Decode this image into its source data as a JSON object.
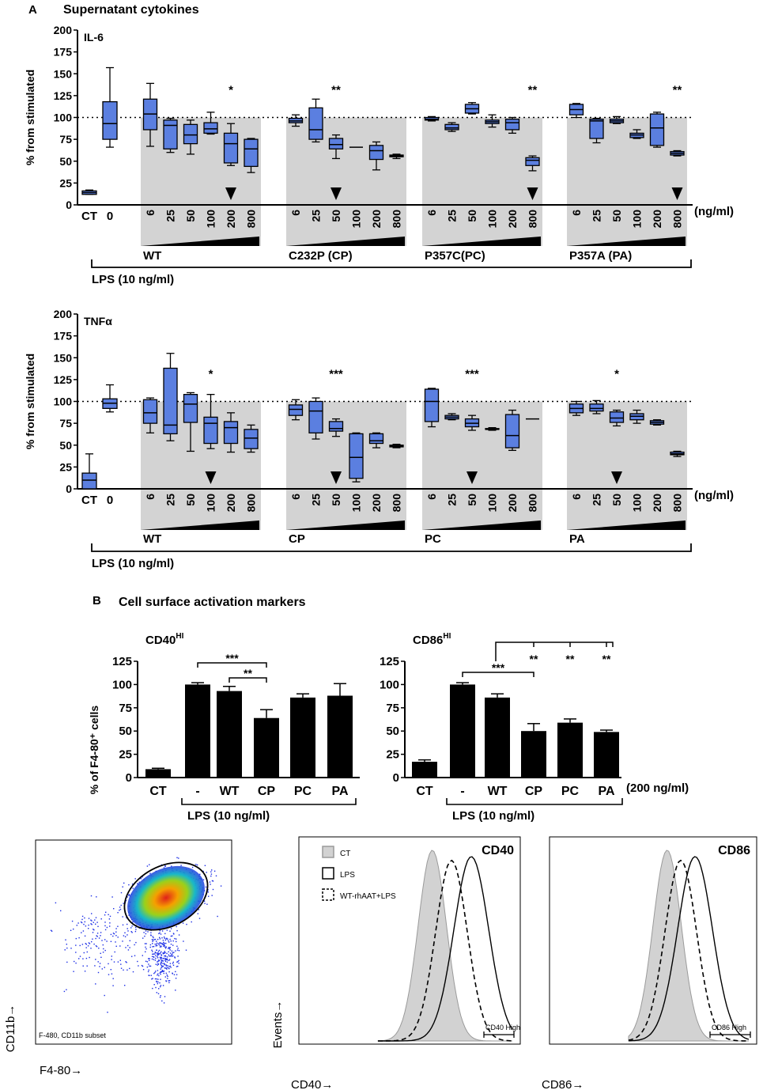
{
  "panel_a": {
    "letter": "A",
    "title": "Supernatant cytokines",
    "unit": "(ng/ml)",
    "lps_label": "LPS (10 ng/ml)",
    "ylabel": "% from stimulated",
    "ct_label": "CT",
    "zero_label": "0",
    "dose_labels": [
      "6",
      "25",
      "50",
      "100",
      "200",
      "800"
    ]
  },
  "panel_b": {
    "letter": "B",
    "title": "Cell surface activation markers",
    "ylabel": "% of F4-80⁺ cells",
    "unit": "(200 ng/ml)",
    "lps_label": "LPS  (10 ng/ml)"
  },
  "flow": {
    "scatter": {
      "xlabel": "F4-80→",
      "ylabel": "CD11b→",
      "subset": "F-480, CD11b subset"
    },
    "hist1": {
      "title": "CD40",
      "xlabel": "CD40→",
      "ylabel": "Events→",
      "gate": "CD40 High",
      "legend": [
        "CT",
        "LPS",
        "WT-rhAAT+LPS"
      ]
    },
    "hist2": {
      "title": "CD86",
      "xlabel": "CD86→",
      "gate": "CD86 High"
    }
  },
  "chart_data": [
    {
      "type": "box",
      "title": "IL-6",
      "ylim": [
        0,
        200
      ],
      "yticks": [
        0,
        25,
        50,
        75,
        100,
        125,
        150,
        175,
        200
      ],
      "reference_line": 100,
      "controls": [
        {
          "label": "CT",
          "min": 12,
          "q1": 12,
          "med": 14,
          "q3": 16,
          "max": 17
        },
        {
          "label": "0",
          "min": 66,
          "q1": 75,
          "med": 93,
          "q3": 118,
          "max": 157
        }
      ],
      "groups": [
        {
          "name": "WT",
          "sig": "*",
          "arrow_at": "200",
          "boxes": [
            [
              67,
              86,
              104,
              121,
              139
            ],
            [
              60,
              64,
              91,
              97,
              99
            ],
            [
              58,
              70,
              80,
              92,
              97
            ],
            [
              81,
              82,
              87,
              94,
              106
            ],
            [
              45,
              48,
              70,
              82,
              93
            ],
            [
              37,
              44,
              64,
              75,
              76
            ]
          ]
        },
        {
          "name": "C232P (CP)",
          "sig": "**",
          "arrow_at": "50",
          "boxes": [
            [
              90,
              94,
              96,
              99,
              103
            ],
            [
              72,
              75,
              86,
              111,
              121
            ],
            [
              53,
              64,
              69,
              76,
              80
            ],
            [
              null,
              null,
              66,
              null,
              null
            ],
            [
              40,
              52,
              62,
              68,
              72
            ],
            [
              53,
              55,
              56,
              57,
              58
            ]
          ]
        },
        {
          "name": "P357C(PC)",
          "sig": "**",
          "arrow_at": "800",
          "boxes": [
            [
              96,
              97,
              98,
              100,
              101
            ],
            [
              84,
              86,
              88,
              92,
              94
            ],
            [
              104,
              105,
              110,
              115,
              117
            ],
            [
              89,
              93,
              95,
              97,
              103
            ],
            [
              82,
              86,
              94,
              98,
              100
            ],
            [
              39,
              45,
              51,
              54,
              56
            ]
          ]
        },
        {
          "name": "P357A (PA)",
          "sig": "**",
          "arrow_at": "800",
          "boxes": [
            [
              100,
              103,
              109,
              115,
              116
            ],
            [
              71,
              76,
              96,
              98,
              99
            ],
            [
              93,
              94,
              96,
              98,
              101
            ],
            [
              76,
              77,
              80,
              82,
              86
            ],
            [
              66,
              68,
              88,
              104,
              106
            ],
            [
              56,
              57,
              59,
              61,
              62
            ]
          ]
        }
      ]
    },
    {
      "type": "box",
      "title": "TNFα",
      "ylim": [
        0,
        200
      ],
      "yticks": [
        0,
        25,
        50,
        75,
        100,
        125,
        150,
        175,
        200
      ],
      "reference_line": 100,
      "controls": [
        {
          "label": "CT",
          "min": 0,
          "q1": 0,
          "med": 10,
          "q3": 18,
          "max": 40
        },
        {
          "label": "0",
          "min": 88,
          "q1": 92,
          "med": 98,
          "q3": 103,
          "max": 119
        }
      ],
      "groups": [
        {
          "name": "WT",
          "sig": "*",
          "arrow_at": "100",
          "boxes": [
            [
              64,
              75,
              87,
              102,
              104
            ],
            [
              55,
              63,
              73,
              138,
              155
            ],
            [
              43,
              76,
              97,
              108,
              110
            ],
            [
              46,
              52,
              75,
              82,
              108
            ],
            [
              42,
              52,
              70,
              77,
              87
            ],
            [
              42,
              46,
              58,
              68,
              73
            ]
          ]
        },
        {
          "name": "CP",
          "sig": "***",
          "arrow_at": "50",
          "boxes": [
            [
              79,
              84,
              91,
              96,
              102
            ],
            [
              57,
              64,
              89,
              100,
              104
            ],
            [
              60,
              66,
              69,
              77,
              80
            ],
            [
              8,
              12,
              36,
              63,
              64
            ],
            [
              47,
              52,
              55,
              63,
              64
            ],
            [
              47,
              48,
              49,
              50,
              51
            ]
          ]
        },
        {
          "name": "PC",
          "sig": "***",
          "arrow_at": "50",
          "boxes": [
            [
              71,
              77,
              100,
              114,
              115
            ],
            [
              79,
              80,
              82,
              84,
              86
            ],
            [
              67,
              71,
              75,
              80,
              84
            ],
            [
              67,
              68,
              68,
              69,
              70
            ],
            [
              44,
              47,
              61,
              85,
              90
            ],
            [
              null,
              null,
              80,
              null,
              null
            ]
          ]
        },
        {
          "name": "PA",
          "sig": "*",
          "arrow_at": "50",
          "boxes": [
            [
              84,
              87,
              92,
              97,
              100
            ],
            [
              86,
              89,
              92,
              97,
              101
            ],
            [
              72,
              76,
              81,
              88,
              90
            ],
            [
              75,
              79,
              83,
              86,
              90
            ],
            [
              73,
              74,
              76,
              78,
              79
            ],
            [
              37,
              39,
              40,
              42,
              43
            ]
          ]
        }
      ]
    },
    {
      "type": "bar",
      "title": "CD40HI",
      "title_main": "CD40",
      "title_sup": "HI",
      "categories": [
        "CT",
        "-",
        "WT",
        "CP",
        "PC",
        "PA"
      ],
      "values": [
        9,
        100,
        93,
        64,
        86,
        88
      ],
      "errors": [
        1,
        2,
        5,
        9,
        4,
        13
      ],
      "ylim": [
        0,
        125
      ],
      "yticks": [
        0,
        25,
        50,
        75,
        100,
        125
      ],
      "annotations": [
        {
          "from": "-",
          "to": "CP",
          "text": "***"
        },
        {
          "from": "WT",
          "to": "CP",
          "text": "**"
        }
      ]
    },
    {
      "type": "bar",
      "title": "CD86HI",
      "title_main": "CD86",
      "title_sup": "HI",
      "categories": [
        "CT",
        "-",
        "WT",
        "CP",
        "PC",
        "PA"
      ],
      "values": [
        17,
        100,
        86,
        50,
        59,
        49
      ],
      "errors": [
        2,
        2,
        4,
        8,
        4,
        2
      ],
      "ylim": [
        0,
        125
      ],
      "yticks": [
        0,
        25,
        50,
        75,
        100,
        125
      ],
      "annotations": [
        {
          "from": "-",
          "to": "CP",
          "text": "***"
        },
        {
          "from": "WT",
          "to": "CP",
          "text": "**"
        },
        {
          "from": "WT",
          "to": "PC",
          "text": "**"
        },
        {
          "from": "WT",
          "to": "PA",
          "text": "**"
        }
      ]
    }
  ]
}
